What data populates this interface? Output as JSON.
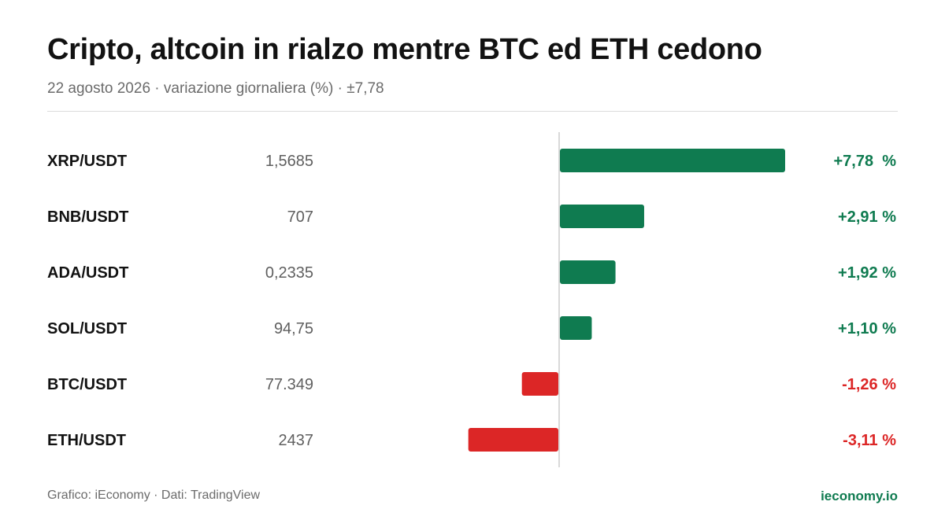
{
  "header": {
    "title": "Cripto, altcoin in rialzo mentre BTC ed ETH cedono",
    "subtitle": "22 agosto 2026 · variazione giornaliera (%) · ±7,78"
  },
  "footer": {
    "source": "Grafico: iEconomy · Dati: TradingView",
    "brand": "ieconomy.io"
  },
  "colors": {
    "positive": "#0f7b50",
    "negative": "#dc2626",
    "axis": "#d9d9d9",
    "label": "#121212",
    "price": "#5f5f5f"
  },
  "chart_data": {
    "type": "bar",
    "orientation": "horizontal",
    "unit": "%",
    "xlim": [
      -7.78,
      7.78
    ],
    "grid": false,
    "legend": "none",
    "categories": [
      "XRP/USDT",
      "BNB/USDT",
      "ADA/USDT",
      "SOL/USDT",
      "BTC/USDT",
      "ETH/USDT"
    ],
    "prices": [
      "1,5685",
      "707",
      "0,2335",
      "94,75",
      "77.349",
      "2437"
    ],
    "values": [
      7.78,
      2.91,
      1.92,
      1.1,
      -1.26,
      -3.11
    ],
    "value_labels": [
      "+7,78  %",
      "+2,91 %",
      "+1,92 %",
      "+1,10 %",
      "-1,26 %",
      "-3,11 %"
    ]
  }
}
